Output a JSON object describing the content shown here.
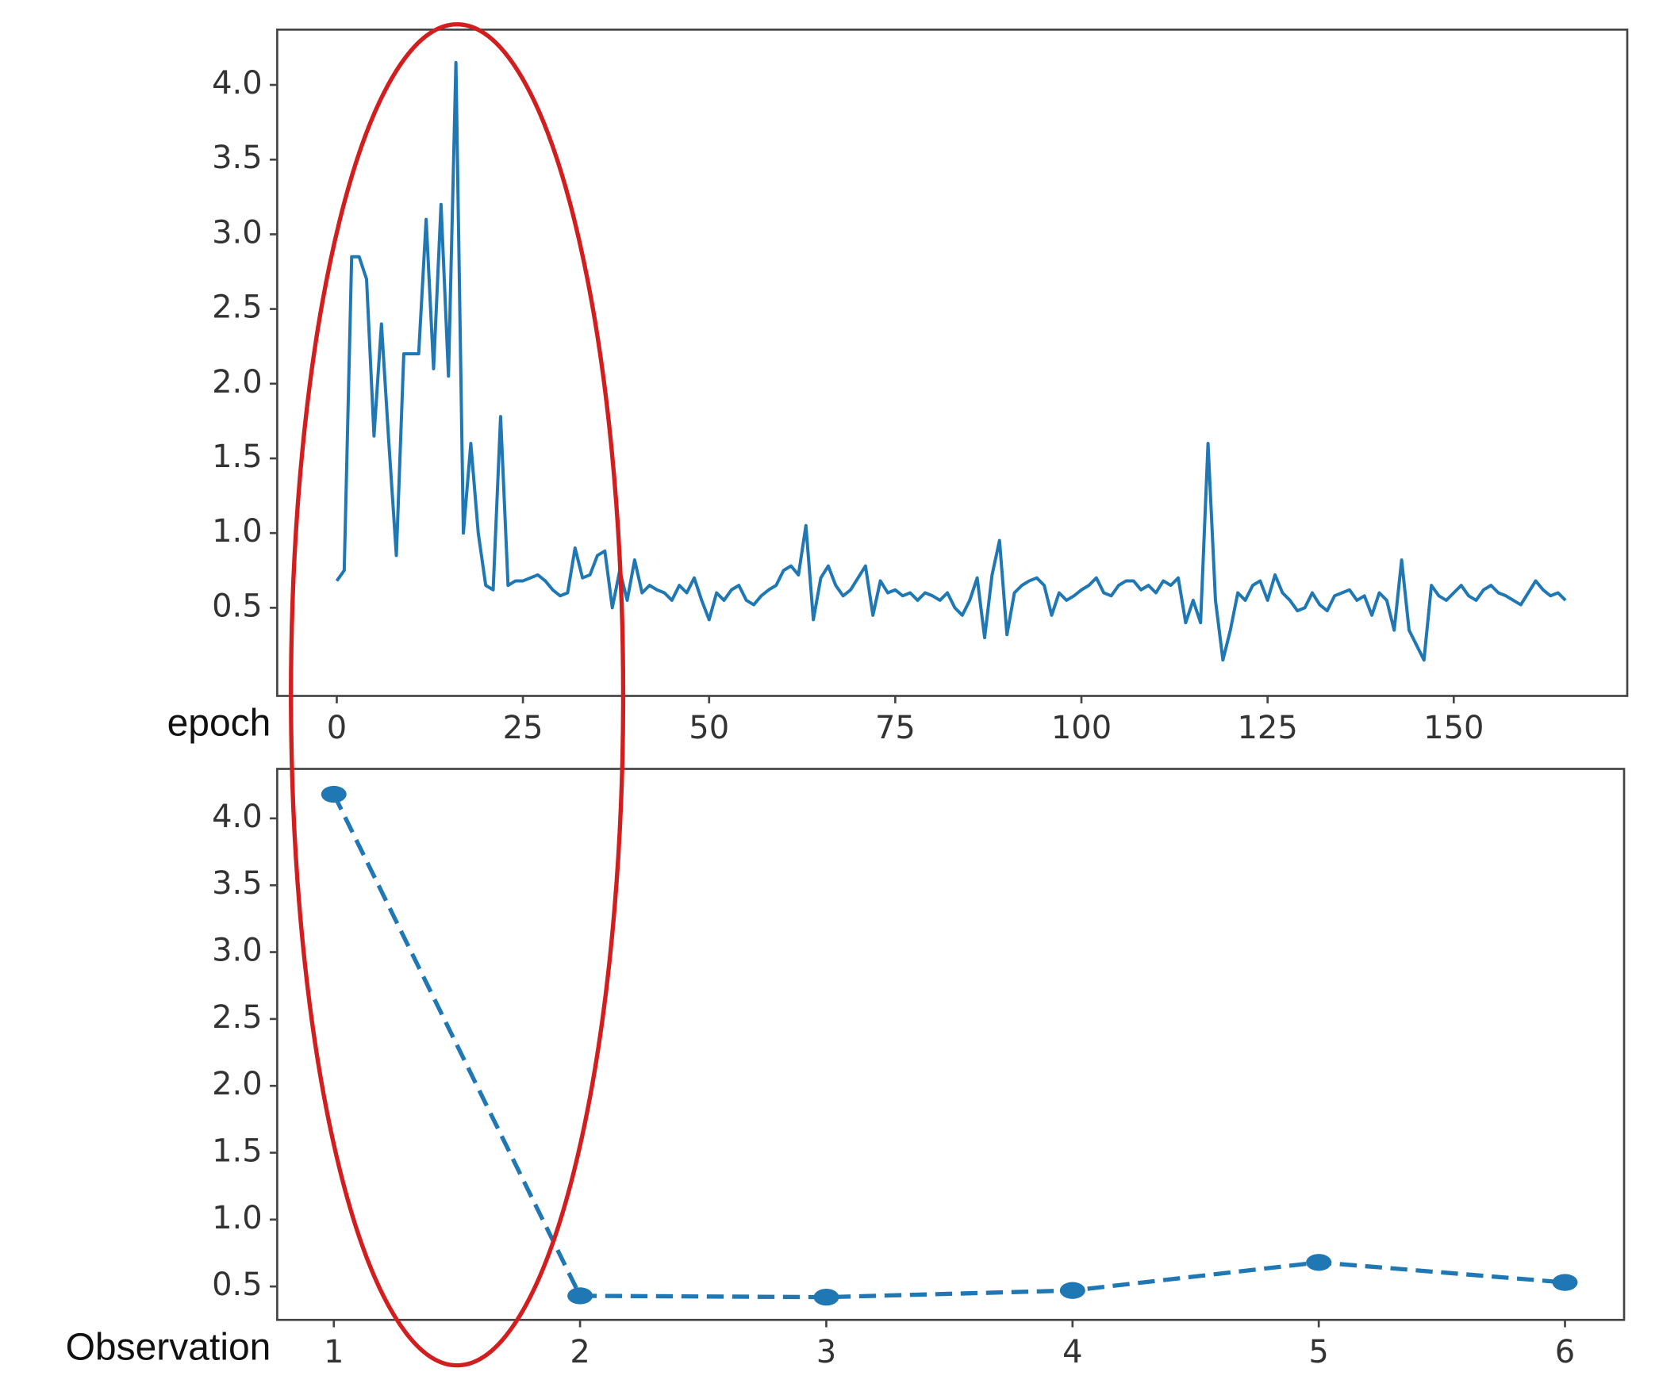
{
  "chart_data": [
    {
      "type": "line",
      "xlabel": "epoch",
      "color": "#1f77b4",
      "x": [
        0,
        1,
        2,
        3,
        4,
        5,
        6,
        7,
        8,
        9,
        10,
        11,
        12,
        13,
        14,
        15,
        16,
        17,
        18,
        19,
        20,
        21,
        22,
        23,
        24,
        25,
        26,
        27,
        28,
        29,
        30,
        31,
        32,
        33,
        34,
        35,
        36,
        37,
        38,
        39,
        40,
        41,
        42,
        43,
        44,
        45,
        46,
        47,
        48,
        49,
        50,
        51,
        52,
        53,
        54,
        55,
        56,
        57,
        58,
        59,
        60,
        61,
        62,
        63,
        64,
        65,
        66,
        67,
        68,
        69,
        70,
        71,
        72,
        73,
        74,
        75,
        76,
        77,
        78,
        79,
        80,
        81,
        82,
        83,
        84,
        85,
        86,
        87,
        88,
        89,
        90,
        91,
        92,
        93,
        94,
        95,
        96,
        97,
        98,
        99,
        100,
        101,
        102,
        103,
        104,
        105,
        106,
        107,
        108,
        109,
        110,
        111,
        112,
        113,
        114,
        115,
        116,
        117,
        118,
        119,
        120,
        121,
        122,
        123,
        124,
        125,
        126,
        127,
        128,
        129,
        130,
        131,
        132,
        133,
        134,
        135,
        136,
        137,
        138,
        139,
        140,
        141,
        142,
        143,
        144,
        145,
        146,
        147,
        148,
        149,
        150,
        151,
        152,
        153,
        154,
        155,
        156,
        157,
        158,
        159,
        160,
        161,
        162,
        163,
        164,
        165
      ],
      "values": [
        0.68,
        0.75,
        2.85,
        2.85,
        2.7,
        1.65,
        2.4,
        1.6,
        0.85,
        2.2,
        2.2,
        2.2,
        3.1,
        2.1,
        3.2,
        2.05,
        4.15,
        1.0,
        1.6,
        1.0,
        0.65,
        0.62,
        1.78,
        0.65,
        0.68,
        0.68,
        0.7,
        0.72,
        0.68,
        0.62,
        0.58,
        0.6,
        0.9,
        0.7,
        0.72,
        0.85,
        0.88,
        0.5,
        0.75,
        0.55,
        0.82,
        0.6,
        0.65,
        0.62,
        0.6,
        0.55,
        0.65,
        0.6,
        0.7,
        0.55,
        0.42,
        0.6,
        0.55,
        0.62,
        0.65,
        0.55,
        0.52,
        0.58,
        0.62,
        0.65,
        0.75,
        0.78,
        0.72,
        1.05,
        0.42,
        0.7,
        0.78,
        0.65,
        0.58,
        0.62,
        0.7,
        0.78,
        0.45,
        0.68,
        0.6,
        0.62,
        0.58,
        0.6,
        0.55,
        0.6,
        0.58,
        0.55,
        0.6,
        0.5,
        0.45,
        0.55,
        0.7,
        0.3,
        0.72,
        0.95,
        0.32,
        0.6,
        0.65,
        0.68,
        0.7,
        0.65,
        0.45,
        0.6,
        0.55,
        0.58,
        0.62,
        0.65,
        0.7,
        0.6,
        0.58,
        0.65,
        0.68,
        0.68,
        0.62,
        0.65,
        0.6,
        0.68,
        0.65,
        0.7,
        0.4,
        0.55,
        0.4,
        1.6,
        0.55,
        0.15,
        0.35,
        0.6,
        0.55,
        0.65,
        0.68,
        0.55,
        0.72,
        0.6,
        0.55,
        0.48,
        0.5,
        0.6,
        0.52,
        0.48,
        0.58,
        0.6,
        0.62,
        0.55,
        0.58,
        0.45,
        0.6,
        0.55,
        0.35,
        0.82,
        0.35,
        0.25,
        0.15,
        0.65,
        0.58,
        0.55,
        0.6,
        0.65,
        0.58,
        0.55,
        0.62,
        0.65,
        0.6,
        0.58,
        0.55,
        0.52,
        0.6,
        0.68,
        0.62,
        0.58,
        0.6,
        0.55
      ],
      "xlim": [
        -8,
        173.3
      ],
      "xticks": [
        0,
        25,
        50,
        75,
        100,
        125,
        150
      ],
      "ylim": [
        -0.09,
        4.37
      ],
      "yticks": [
        0.5,
        {
          "value": 1,
          "label": "1.0"
        },
        1.5,
        {
          "value": 2,
          "label": "2.0"
        },
        2.5,
        {
          "value": 3,
          "label": "3.0"
        },
        3.5,
        {
          "value": 4,
          "label": "4.0"
        }
      ]
    },
    {
      "type": "line",
      "xlabel": "Observation",
      "color": "#1f77b4",
      "linestyle": "dashed",
      "marker": "o",
      "x": [
        1,
        2,
        3,
        4,
        5,
        6
      ],
      "values": [
        4.18,
        0.43,
        0.42,
        0.47,
        0.68,
        0.53
      ],
      "xlim": [
        0.77,
        6.24
      ],
      "xticks": [
        1,
        2,
        3,
        4,
        5,
        6
      ],
      "ylim": [
        0.25,
        4.37
      ],
      "yticks": [
        0.5,
        {
          "value": 1,
          "label": "1.0"
        },
        1.5,
        {
          "value": 2,
          "label": "2.0"
        },
        2.5,
        {
          "value": 3,
          "label": "3.0"
        },
        3.5,
        {
          "value": 4,
          "label": "4.0"
        }
      ]
    }
  ]
}
